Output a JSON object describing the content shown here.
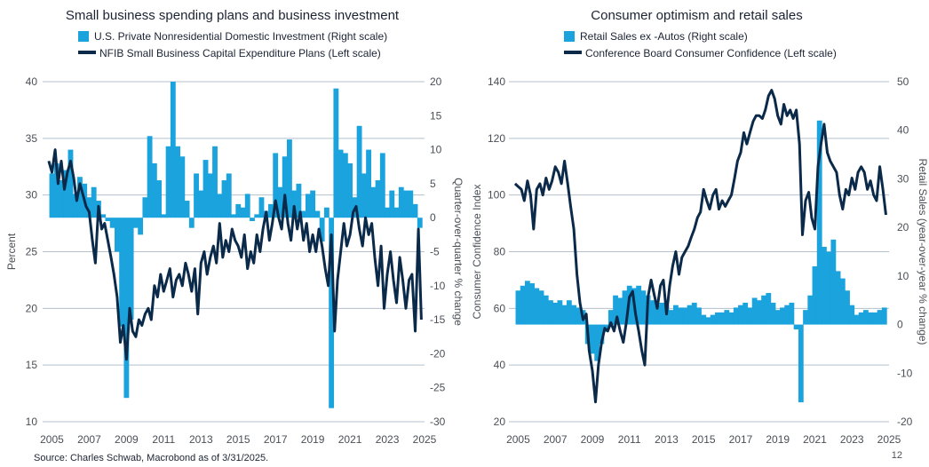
{
  "source": "Source: Charles Schwab, Macrobond as of 3/31/2025.",
  "page_number": "12",
  "colors": {
    "bar": "#1aa3dd",
    "line": "#0b2a4a",
    "grid": "#b4c0cc"
  },
  "chart_data": [
    {
      "type": "bar+line",
      "title": "Small business spending plans and business investment",
      "legend": [
        "U.S. Private Nonresidential Domestic Investment (Right scale)",
        "NFIB Small Business Capital Expenditure Plans (Left scale)"
      ],
      "ylabel_left": "Percent",
      "ylabel_right": "Quarter-over-quarter % change",
      "ylim_left": [
        10,
        40
      ],
      "ylim_right": [
        -30,
        20
      ],
      "yticks_left": [
        "40",
        "35",
        "30",
        "25",
        "20",
        "15",
        "10"
      ],
      "yticks_right": [
        "20",
        "15",
        "10",
        "5",
        "0",
        "-5",
        "-10",
        "-15",
        "-20",
        "-25",
        "-30"
      ],
      "xlim": [
        2004.5,
        2025.0
      ],
      "xticks": [
        "2005",
        "2007",
        "2009",
        "2011",
        "2013",
        "2015",
        "2017",
        "2019",
        "2021",
        "2023",
        "2025"
      ],
      "series": [
        {
          "name": "U.S. Private Nonresidential Domestic Investment (Right scale)",
          "kind": "bar",
          "axis": "right",
          "x": [
            2005.0,
            2005.25,
            2005.5,
            2005.75,
            2006.0,
            2006.25,
            2006.5,
            2006.75,
            2007.0,
            2007.25,
            2007.5,
            2007.75,
            2008.0,
            2008.25,
            2008.5,
            2008.75,
            2009.0,
            2009.25,
            2009.5,
            2009.75,
            2010.0,
            2010.25,
            2010.5,
            2010.75,
            2011.0,
            2011.25,
            2011.5,
            2011.75,
            2012.0,
            2012.25,
            2012.5,
            2012.75,
            2013.0,
            2013.25,
            2013.5,
            2013.75,
            2014.0,
            2014.25,
            2014.5,
            2014.75,
            2015.0,
            2015.25,
            2015.5,
            2015.75,
            2016.0,
            2016.25,
            2016.5,
            2016.75,
            2017.0,
            2017.25,
            2017.5,
            2017.75,
            2018.0,
            2018.25,
            2018.5,
            2018.75,
            2019.0,
            2019.25,
            2019.5,
            2019.75,
            2020.0,
            2020.25,
            2020.5,
            2020.75,
            2021.0,
            2021.25,
            2021.5,
            2021.75,
            2022.0,
            2022.25,
            2022.5,
            2022.75,
            2023.0,
            2023.25,
            2023.5,
            2023.75,
            2024.0,
            2024.25,
            2024.5,
            2024.75
          ],
          "values": [
            6.5,
            8.0,
            5.5,
            7.0,
            10.0,
            3.5,
            6.0,
            5.0,
            3.0,
            4.5,
            2.5,
            0.5,
            -0.5,
            -1.5,
            -5.0,
            -16.0,
            -26.5,
            -15.0,
            -1.5,
            -2.5,
            3.0,
            12.0,
            8.0,
            5.5,
            0.5,
            10.5,
            20.0,
            10.5,
            9.0,
            2.5,
            -1.5,
            6.5,
            4.0,
            8.5,
            6.5,
            10.5,
            3.5,
            5.5,
            6.5,
            0.5,
            2.0,
            1.5,
            3.5,
            -0.5,
            0.5,
            3.0,
            1.0,
            2.0,
            9.5,
            4.5,
            9.0,
            11.5,
            4.0,
            5.0,
            1.0,
            3.5,
            4.0,
            1.0,
            -3.5,
            1.5,
            -28.0,
            19.0,
            10.0,
            9.5,
            8.0,
            3.0,
            13.5,
            6.5,
            10.0,
            4.5,
            5.5,
            9.5,
            1.5,
            4.0,
            1.5,
            4.5,
            4.0,
            4.0,
            2.0,
            -1.5
          ]
        },
        {
          "name": "NFIB Small Business Capital Expenditure Plans (Left scale)",
          "kind": "line",
          "axis": "left",
          "x": [
            2004.83,
            2005.0,
            2005.17,
            2005.33,
            2005.5,
            2005.67,
            2005.83,
            2006.0,
            2006.17,
            2006.33,
            2006.5,
            2006.67,
            2006.83,
            2007.0,
            2007.17,
            2007.33,
            2007.5,
            2007.67,
            2007.83,
            2008.0,
            2008.17,
            2008.33,
            2008.5,
            2008.67,
            2008.83,
            2009.0,
            2009.17,
            2009.33,
            2009.5,
            2009.67,
            2009.83,
            2010.0,
            2010.17,
            2010.33,
            2010.5,
            2010.67,
            2010.83,
            2011.0,
            2011.17,
            2011.33,
            2011.5,
            2011.67,
            2011.83,
            2012.0,
            2012.17,
            2012.33,
            2012.5,
            2012.67,
            2012.83,
            2013.0,
            2013.17,
            2013.33,
            2013.5,
            2013.67,
            2013.83,
            2014.0,
            2014.17,
            2014.33,
            2014.5,
            2014.67,
            2014.83,
            2015.0,
            2015.17,
            2015.33,
            2015.5,
            2015.67,
            2015.83,
            2016.0,
            2016.17,
            2016.33,
            2016.5,
            2016.67,
            2016.83,
            2017.0,
            2017.17,
            2017.33,
            2017.5,
            2017.67,
            2017.83,
            2018.0,
            2018.17,
            2018.33,
            2018.5,
            2018.67,
            2018.83,
            2019.0,
            2019.17,
            2019.33,
            2019.5,
            2019.67,
            2019.83,
            2020.0,
            2020.17,
            2020.33,
            2020.5,
            2020.67,
            2020.83,
            2021.0,
            2021.17,
            2021.33,
            2021.5,
            2021.67,
            2021.83,
            2022.0,
            2022.17,
            2022.33,
            2022.5,
            2022.67,
            2022.83,
            2023.0,
            2023.17,
            2023.33,
            2023.5,
            2023.67,
            2023.83,
            2024.0,
            2024.17,
            2024.33,
            2024.5,
            2024.67,
            2024.83
          ],
          "values": [
            33.0,
            32.0,
            34.0,
            31.0,
            33.0,
            30.5,
            32.0,
            33.0,
            31.5,
            29.5,
            31.0,
            30.0,
            29.0,
            28.5,
            26.0,
            24.0,
            29.0,
            27.0,
            27.5,
            26.0,
            24.5,
            23.0,
            21.0,
            17.0,
            18.5,
            15.5,
            20.0,
            18.0,
            17.5,
            19.0,
            18.5,
            19.5,
            20.0,
            19.0,
            22.0,
            21.0,
            23.0,
            21.5,
            22.5,
            23.5,
            21.0,
            22.5,
            23.0,
            22.0,
            24.0,
            23.0,
            21.5,
            23.5,
            19.5,
            24.0,
            25.0,
            23.0,
            24.5,
            25.5,
            24.0,
            27.5,
            24.5,
            26.0,
            25.0,
            27.0,
            26.0,
            25.5,
            24.5,
            26.5,
            23.5,
            25.0,
            24.0,
            26.5,
            25.0,
            27.0,
            28.5,
            26.0,
            27.5,
            29.5,
            28.0,
            27.0,
            30.0,
            27.5,
            26.0,
            29.0,
            27.0,
            28.5,
            26.0,
            27.5,
            25.0,
            26.5,
            25.0,
            27.0,
            25.5,
            23.5,
            22.0,
            26.5,
            18.0,
            22.5,
            25.0,
            27.5,
            25.5,
            26.5,
            28.5,
            29.0,
            27.0,
            25.5,
            28.0,
            26.5,
            27.5,
            24.5,
            22.0,
            25.5,
            20.0,
            23.0,
            25.0,
            22.5,
            20.5,
            24.5,
            22.5,
            20.0,
            22.5,
            23.0,
            18.0,
            27.0,
            19.0
          ]
        }
      ]
    },
    {
      "type": "bar+line",
      "title": "Consumer optimism and retail sales",
      "legend": [
        "Retail Sales ex -Autos (Right scale)",
        "Conference Board Consumer Confidence (Left scale)"
      ],
      "ylabel_left": "Consumer Confidence Index",
      "ylabel_right": "Retail Sales (year-over-year % change)",
      "ylim_left": [
        20,
        140
      ],
      "ylim_right": [
        -20,
        50
      ],
      "yticks_left": [
        "140",
        "120",
        "100",
        "80",
        "60",
        "40",
        "20"
      ],
      "yticks_right": [
        "50",
        "40",
        "30",
        "20",
        "10",
        "0",
        "-10",
        "-20"
      ],
      "xlim": [
        2004.5,
        2025.0
      ],
      "xticks": [
        "2005",
        "2007",
        "2009",
        "2011",
        "2013",
        "2015",
        "2017",
        "2019",
        "2021",
        "2023",
        "2025"
      ],
      "series": [
        {
          "name": "Retail Sales ex -Autos (Right scale)",
          "kind": "bar",
          "axis": "right",
          "x": [
            2005.0,
            2005.25,
            2005.5,
            2005.75,
            2006.0,
            2006.25,
            2006.5,
            2006.75,
            2007.0,
            2007.25,
            2007.5,
            2007.75,
            2008.0,
            2008.25,
            2008.5,
            2008.75,
            2009.0,
            2009.25,
            2009.5,
            2009.75,
            2010.0,
            2010.25,
            2010.5,
            2010.75,
            2011.0,
            2011.25,
            2011.5,
            2011.75,
            2012.0,
            2012.25,
            2012.5,
            2012.75,
            2013.0,
            2013.25,
            2013.5,
            2013.75,
            2014.0,
            2014.25,
            2014.5,
            2014.75,
            2015.0,
            2015.25,
            2015.5,
            2015.75,
            2016.0,
            2016.25,
            2016.5,
            2016.75,
            2017.0,
            2017.25,
            2017.5,
            2017.75,
            2018.0,
            2018.25,
            2018.5,
            2018.75,
            2019.0,
            2019.25,
            2019.5,
            2019.75,
            2020.0,
            2020.25,
            2020.5,
            2020.75,
            2021.0,
            2021.25,
            2021.5,
            2021.75,
            2022.0,
            2022.25,
            2022.5,
            2022.75,
            2023.0,
            2023.25,
            2023.5,
            2023.75,
            2024.0,
            2024.25,
            2024.5,
            2024.75
          ],
          "values": [
            7.0,
            8.0,
            9.0,
            8.5,
            7.5,
            7.0,
            6.0,
            5.0,
            4.5,
            5.0,
            4.0,
            5.0,
            4.0,
            3.5,
            3.0,
            -4.0,
            -6.0,
            -7.5,
            -4.0,
            -1.5,
            3.0,
            6.0,
            5.5,
            7.0,
            8.0,
            7.5,
            8.0,
            7.0,
            6.0,
            5.0,
            4.0,
            4.5,
            4.0,
            3.0,
            4.0,
            3.5,
            3.5,
            4.0,
            4.5,
            3.5,
            2.0,
            1.5,
            2.0,
            2.5,
            2.5,
            3.0,
            2.5,
            3.5,
            4.0,
            4.5,
            3.5,
            5.5,
            5.0,
            6.0,
            6.5,
            4.5,
            3.0,
            3.5,
            4.0,
            4.5,
            -1.0,
            -16.0,
            3.0,
            6.0,
            12.0,
            42.0,
            16.0,
            15.0,
            17.5,
            11.0,
            9.5,
            7.0,
            4.0,
            2.0,
            2.5,
            3.0,
            2.5,
            2.5,
            3.0,
            3.5
          ]
        },
        {
          "name": "Conference Board Consumer Confidence (Left scale)",
          "kind": "line",
          "axis": "left",
          "x": [
            2004.83,
            2005.0,
            2005.17,
            2005.33,
            2005.5,
            2005.67,
            2005.83,
            2006.0,
            2006.17,
            2006.33,
            2006.5,
            2006.67,
            2006.83,
            2007.0,
            2007.17,
            2007.33,
            2007.5,
            2007.67,
            2007.83,
            2008.0,
            2008.17,
            2008.33,
            2008.5,
            2008.67,
            2008.83,
            2009.0,
            2009.17,
            2009.33,
            2009.5,
            2009.67,
            2009.83,
            2010.0,
            2010.17,
            2010.33,
            2010.5,
            2010.67,
            2010.83,
            2011.0,
            2011.17,
            2011.33,
            2011.5,
            2011.67,
            2011.83,
            2012.0,
            2012.17,
            2012.33,
            2012.5,
            2012.67,
            2012.83,
            2013.0,
            2013.17,
            2013.33,
            2013.5,
            2013.67,
            2013.83,
            2014.0,
            2014.17,
            2014.33,
            2014.5,
            2014.67,
            2014.83,
            2015.0,
            2015.17,
            2015.33,
            2015.5,
            2015.67,
            2015.83,
            2016.0,
            2016.17,
            2016.33,
            2016.5,
            2016.67,
            2016.83,
            2017.0,
            2017.17,
            2017.33,
            2017.5,
            2017.67,
            2017.83,
            2018.0,
            2018.17,
            2018.33,
            2018.5,
            2018.67,
            2018.83,
            2019.0,
            2019.17,
            2019.33,
            2019.5,
            2019.67,
            2019.83,
            2020.0,
            2020.17,
            2020.33,
            2020.5,
            2020.67,
            2020.83,
            2021.0,
            2021.17,
            2021.33,
            2021.5,
            2021.67,
            2021.83,
            2022.0,
            2022.17,
            2022.33,
            2022.5,
            2022.67,
            2022.83,
            2023.0,
            2023.17,
            2023.33,
            2023.5,
            2023.67,
            2023.83,
            2024.0,
            2024.17,
            2024.33,
            2024.5,
            2024.67,
            2024.83
          ],
          "values": [
            104,
            103,
            102,
            98,
            105,
            100,
            88,
            102,
            104,
            100,
            106,
            102,
            105,
            110,
            108,
            104,
            112,
            104,
            96,
            88,
            72,
            62,
            56,
            58,
            45,
            38,
            27,
            40,
            48,
            53,
            52,
            55,
            52,
            57,
            52,
            48,
            55,
            64,
            66,
            58,
            52,
            45,
            40,
            64,
            70,
            65,
            60,
            68,
            70,
            58,
            68,
            75,
            80,
            72,
            78,
            80,
            82,
            85,
            88,
            92,
            94,
            102,
            98,
            95,
            100,
            102,
            95,
            98,
            96,
            98,
            100,
            106,
            112,
            115,
            122,
            118,
            122,
            126,
            128,
            128,
            127,
            130,
            135,
            137,
            134,
            128,
            125,
            132,
            128,
            130,
            127,
            130,
            118,
            86,
            98,
            101,
            92,
            88,
            110,
            118,
            125,
            115,
            112,
            110,
            108,
            100,
            95,
            102,
            100,
            106,
            102,
            108,
            110,
            108,
            102,
            105,
            100,
            98,
            110,
            102,
            93
          ]
        }
      ]
    }
  ]
}
